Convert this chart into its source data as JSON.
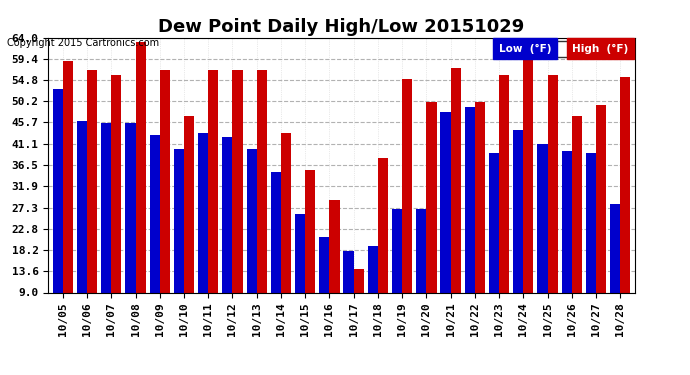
{
  "title": "Dew Point Daily High/Low 20151029",
  "copyright": "Copyright 2015 Cartronics.com",
  "categories": [
    "10/05",
    "10/06",
    "10/07",
    "10/08",
    "10/09",
    "10/10",
    "10/11",
    "10/12",
    "10/13",
    "10/14",
    "10/15",
    "10/16",
    "10/17",
    "10/18",
    "10/19",
    "10/20",
    "10/21",
    "10/22",
    "10/23",
    "10/24",
    "10/25",
    "10/26",
    "10/27",
    "10/28"
  ],
  "low_values": [
    53.0,
    46.0,
    45.5,
    45.5,
    43.0,
    40.0,
    43.5,
    42.5,
    40.0,
    35.0,
    26.0,
    21.0,
    18.0,
    19.0,
    27.0,
    27.0,
    48.0,
    49.0,
    39.0,
    44.0,
    41.0,
    39.5,
    39.0,
    28.0
  ],
  "high_values": [
    59.0,
    57.0,
    56.0,
    63.0,
    57.0,
    47.0,
    57.0,
    57.0,
    57.0,
    43.5,
    35.5,
    29.0,
    14.0,
    38.0,
    55.0,
    50.0,
    57.5,
    50.0,
    56.0,
    64.0,
    56.0,
    47.0,
    49.5,
    55.5
  ],
  "bar_color_low": "#0000cc",
  "bar_color_high": "#cc0000",
  "bg_color": "#ffffff",
  "plot_bg_color": "#ffffff",
  "grid_color": "#aaaaaa",
  "yticks": [
    9.0,
    13.6,
    18.2,
    22.8,
    27.3,
    31.9,
    36.5,
    41.1,
    45.7,
    50.2,
    54.8,
    59.4,
    64.0
  ],
  "ymin": 9.0,
  "ymax": 64.0,
  "title_fontsize": 13,
  "tick_fontsize": 8,
  "legend_low_label": "Low  (°F)",
  "legend_high_label": "High  (°F)"
}
